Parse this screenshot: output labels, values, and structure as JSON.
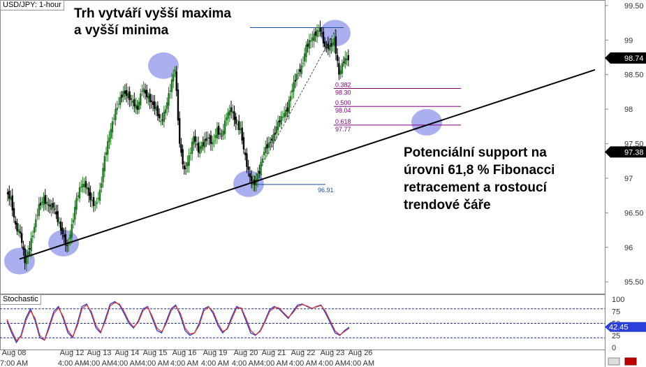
{
  "symbol_label": "USD/JPY: 1-hour",
  "indicator_label": "Stochastic",
  "annotations": {
    "higher_highs": [
      "Trh vytváří vyšší maxima",
      "a vyšší minima"
    ],
    "support": [
      "Potenciální support na",
      "úrovni 61,8 % Fibonacci",
      "retracement a rostoucí",
      "trendové čáře"
    ]
  },
  "chart_data": [
    {
      "type": "candlestick",
      "title": "USD/JPY: 1-hour",
      "ylim": [
        95.33,
        99.58
      ],
      "y_ticks": [
        "99.50",
        "99",
        "98.50",
        "98",
        "97.50",
        "97",
        "96.50",
        "96",
        "95.50"
      ],
      "x_tick_labels": [
        "Aug 08",
        "Aug 12",
        "Aug 13",
        "Aug 14",
        "Aug 15",
        "Aug 16",
        "Aug 19",
        "Aug 20",
        "Aug 21",
        "Aug 22",
        "Aug 23",
        "Aug 26"
      ],
      "x_tick_times": [
        "7:00 AM",
        "4:00 AM",
        "4:00 AM",
        "4:00 AM",
        "4:00 AM",
        "4:00 AM",
        "4:00 AM",
        "4:00 AM",
        "4:00 AM",
        "4:00 AM",
        "4:00 AM",
        "4:00 AM"
      ],
      "current_price": "98.74",
      "reference_price": "97.38",
      "close_path": [
        96.8,
        96.7,
        96.3,
        96.2,
        95.8,
        96.0,
        96.3,
        96.6,
        96.7,
        96.6,
        96.6,
        96.4,
        96.2,
        96.0,
        96.3,
        96.7,
        96.9,
        96.9,
        96.7,
        96.6,
        96.8,
        97.3,
        97.6,
        97.9,
        98.1,
        98.25,
        98.2,
        98.1,
        98.0,
        98.3,
        98.2,
        98.1,
        98.0,
        97.8,
        98.0,
        98.3,
        98.6,
        97.5,
        97.1,
        97.3,
        97.6,
        97.4,
        97.5,
        97.6,
        97.5,
        97.7,
        97.6,
        97.9,
        98.0,
        97.8,
        97.7,
        97.3,
        97.0,
        96.92,
        97.1,
        97.4,
        97.5,
        97.6,
        97.8,
        97.9,
        98.0,
        98.3,
        98.5,
        98.6,
        98.9,
        99.0,
        99.1,
        99.15,
        98.9,
        98.9,
        99.0,
        98.5,
        98.7,
        98.74
      ],
      "fibonacci": {
        "swing_high": 99.18,
        "swing_low": 96.91,
        "levels": [
          {
            "ratio": "0.382",
            "price": "98.30"
          },
          {
            "ratio": "0.500",
            "price": "98.04"
          },
          {
            "ratio": "0.618",
            "price": "97.77"
          }
        ],
        "low_label": "96.91"
      },
      "trendline": {
        "start": {
          "x": "Aug 08",
          "y": 95.83
        },
        "end": {
          "x": "Aug 26",
          "y": 98.57
        }
      },
      "highlight_markers": [
        {
          "x": "Aug 08",
          "y": 95.8
        },
        {
          "x": "Aug 12",
          "y": 96.06
        },
        {
          "x": "Aug 14",
          "y": 98.63
        },
        {
          "x": "Aug 19",
          "y": 96.92
        },
        {
          "x": "Aug 22",
          "y": 99.1
        },
        {
          "x": "Aug 23",
          "y": 97.81
        }
      ]
    },
    {
      "type": "line",
      "title": "Stochastic",
      "ylim": [
        0,
        100
      ],
      "y_ticks": [
        "100",
        "75",
        "50",
        "25",
        "0"
      ],
      "reference_levels": [
        80,
        50,
        20
      ],
      "current_value": "42.45",
      "series": [
        {
          "color": "#1f3fd6",
          "values": [
            55,
            30,
            10,
            25,
            60,
            80,
            55,
            20,
            15,
            45,
            75,
            85,
            60,
            30,
            20,
            50,
            85,
            90,
            70,
            40,
            30,
            60,
            90,
            95,
            88,
            70,
            50,
            40,
            55,
            80,
            85,
            60,
            35,
            30,
            55,
            80,
            88,
            65,
            35,
            25,
            30,
            50,
            80,
            85,
            70,
            45,
            30,
            40,
            65,
            85,
            80,
            55,
            30,
            25,
            35,
            55,
            78,
            85,
            80,
            70,
            60,
            75,
            88,
            90,
            85,
            80,
            85,
            88,
            70,
            50,
            30,
            25,
            35,
            42
          ]
        },
        {
          "color": "#e03030",
          "values": [
            58,
            35,
            14,
            22,
            55,
            76,
            60,
            25,
            15,
            40,
            70,
            82,
            64,
            35,
            22,
            45,
            80,
            88,
            74,
            45,
            32,
            55,
            86,
            93,
            90,
            74,
            54,
            42,
            52,
            76,
            84,
            64,
            40,
            32,
            50,
            76,
            86,
            70,
            40,
            28,
            30,
            46,
            76,
            84,
            74,
            50,
            33,
            38,
            60,
            82,
            82,
            60,
            35,
            26,
            33,
            52,
            74,
            83,
            82,
            72,
            62,
            72,
            85,
            89,
            86,
            81,
            84,
            87,
            74,
            54,
            34,
            26,
            33,
            40
          ]
        }
      ]
    }
  ],
  "colors": {
    "bull_candle": "#1e7a1e",
    "bear_candle": "#000000",
    "trendline": "#000000",
    "fib_lines": "#800080",
    "swing_line": "#1a4d9c",
    "marker_fill": "#7d86e6",
    "stoch_k": "#1f3fd6",
    "stoch_d": "#e03030",
    "stoch_levels": "#1a2a9c",
    "axis": "#888888",
    "price_tag_bg": "#000000",
    "stoch_tag_bg": "#2a40d8"
  }
}
